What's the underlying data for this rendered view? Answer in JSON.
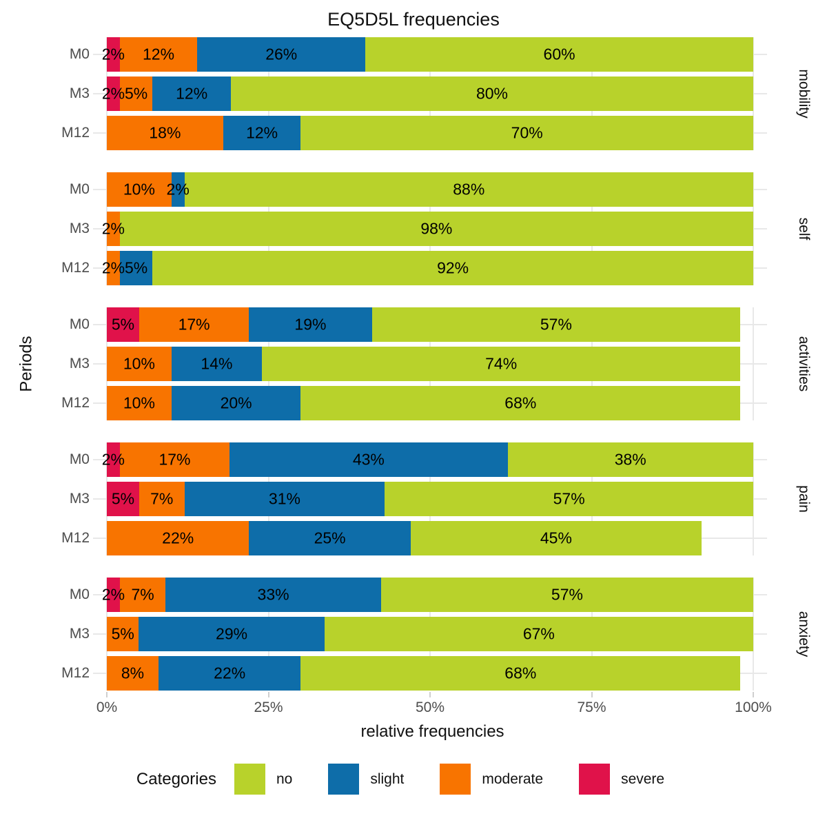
{
  "title": "EQ5D5L frequencies",
  "y_axis": {
    "label": "Periods",
    "tick_labels": [
      "M0",
      "M3",
      "M12"
    ]
  },
  "x_axis": {
    "label": "relative frequencies",
    "tick_labels": [
      "0%",
      "25%",
      "50%",
      "75%",
      "100%"
    ],
    "tick_values": [
      0,
      25,
      50,
      75,
      100
    ]
  },
  "legend": {
    "title": "Categories",
    "position": "bottom",
    "items": [
      {
        "label": "no",
        "color": "#b8d22b"
      },
      {
        "label": "slight",
        "color": "#0e6da9"
      },
      {
        "label": "moderate",
        "color": "#f87400"
      },
      {
        "label": "severe",
        "color": "#e0124a"
      }
    ]
  },
  "chart_data": {
    "type": "bar",
    "orientation": "horizontal-stacked",
    "title": "EQ5D5L frequencies",
    "xlabel": "relative frequencies",
    "ylabel": "Periods",
    "xlim": [
      0,
      100
    ],
    "grid": true,
    "stack_order_left_to_right": [
      "severe",
      "moderate",
      "slight",
      "no"
    ],
    "facets": [
      {
        "name": "mobility",
        "rows": [
          {
            "period": "M0",
            "total": 100,
            "segments": [
              {
                "category": "severe",
                "value": 2
              },
              {
                "category": "moderate",
                "value": 12
              },
              {
                "category": "slight",
                "value": 26
              },
              {
                "category": "no",
                "value": 60
              }
            ]
          },
          {
            "period": "M3",
            "total": 100,
            "segments": [
              {
                "category": "severe",
                "value": 2
              },
              {
                "category": "moderate",
                "value": 5
              },
              {
                "category": "slight",
                "value": 12
              },
              {
                "category": "no",
                "value": 80
              }
            ]
          },
          {
            "period": "M12",
            "total": 100,
            "segments": [
              {
                "category": "moderate",
                "value": 18
              },
              {
                "category": "slight",
                "value": 12
              },
              {
                "category": "no",
                "value": 70
              }
            ]
          }
        ]
      },
      {
        "name": "self",
        "rows": [
          {
            "period": "M0",
            "total": 100,
            "segments": [
              {
                "category": "moderate",
                "value": 10
              },
              {
                "category": "slight",
                "value": 2
              },
              {
                "category": "no",
                "value": 88
              }
            ]
          },
          {
            "period": "M3",
            "total": 100,
            "segments": [
              {
                "category": "moderate",
                "value": 2
              },
              {
                "category": "no",
                "value": 98
              }
            ]
          },
          {
            "period": "M12",
            "total": 100,
            "segments": [
              {
                "category": "moderate",
                "value": 2
              },
              {
                "category": "slight",
                "value": 5
              },
              {
                "category": "no",
                "value": 92
              }
            ]
          }
        ]
      },
      {
        "name": "activities",
        "rows": [
          {
            "period": "M0",
            "total": 98,
            "segments": [
              {
                "category": "severe",
                "value": 5
              },
              {
                "category": "moderate",
                "value": 17
              },
              {
                "category": "slight",
                "value": 19
              },
              {
                "category": "no",
                "value": 57
              }
            ]
          },
          {
            "period": "M3",
            "total": 98,
            "segments": [
              {
                "category": "moderate",
                "value": 10
              },
              {
                "category": "slight",
                "value": 14
              },
              {
                "category": "no",
                "value": 74
              }
            ]
          },
          {
            "period": "M12",
            "total": 98,
            "segments": [
              {
                "category": "moderate",
                "value": 10
              },
              {
                "category": "slight",
                "value": 20
              },
              {
                "category": "no",
                "value": 68
              }
            ]
          }
        ]
      },
      {
        "name": "pain",
        "rows": [
          {
            "period": "M0",
            "total": 100,
            "segments": [
              {
                "category": "severe",
                "value": 2
              },
              {
                "category": "moderate",
                "value": 17
              },
              {
                "category": "slight",
                "value": 43
              },
              {
                "category": "no",
                "value": 38
              }
            ]
          },
          {
            "period": "M3",
            "total": 100,
            "segments": [
              {
                "category": "severe",
                "value": 5
              },
              {
                "category": "moderate",
                "value": 7
              },
              {
                "category": "slight",
                "value": 31
              },
              {
                "category": "no",
                "value": 57
              }
            ]
          },
          {
            "period": "M12",
            "total": 92,
            "segments": [
              {
                "category": "moderate",
                "value": 22
              },
              {
                "category": "slight",
                "value": 25
              },
              {
                "category": "no",
                "value": 45
              }
            ]
          }
        ]
      },
      {
        "name": "anxiety",
        "rows": [
          {
            "period": "M0",
            "total": 100,
            "segments": [
              {
                "category": "severe",
                "value": 2
              },
              {
                "category": "moderate",
                "value": 7
              },
              {
                "category": "slight",
                "value": 33
              },
              {
                "category": "no",
                "value": 57
              }
            ]
          },
          {
            "period": "M3",
            "total": 100,
            "segments": [
              {
                "category": "moderate",
                "value": 5
              },
              {
                "category": "slight",
                "value": 29
              },
              {
                "category": "no",
                "value": 67
              }
            ]
          },
          {
            "period": "M12",
            "total": 98,
            "segments": [
              {
                "category": "moderate",
                "value": 8
              },
              {
                "category": "slight",
                "value": 22
              },
              {
                "category": "no",
                "value": 68
              }
            ]
          }
        ]
      }
    ]
  }
}
